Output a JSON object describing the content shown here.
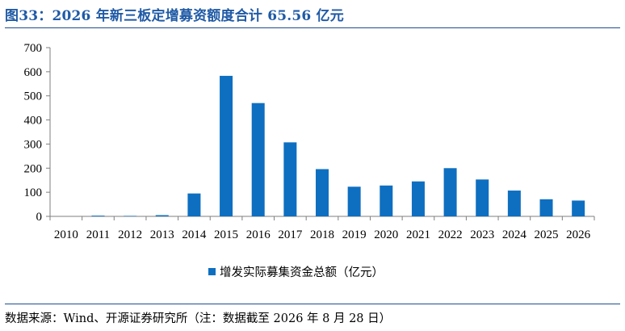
{
  "header": {
    "title": "图33：2026 年新三板定增募资额度合计 65.56 亿元"
  },
  "footer": {
    "source": "数据来源：Wind、开源证券研究所（注：数据截至 2026 年 8 月 28 日）"
  },
  "colors": {
    "bar": "#0e6fc1",
    "title": "#1f5aa6",
    "rule": "#1f4e8c",
    "axis": "#7f7f7f"
  },
  "chart_data": {
    "type": "bar",
    "categories": [
      "2010",
      "2011",
      "2012",
      "2013",
      "2014",
      "2015",
      "2016",
      "2017",
      "2018",
      "2019",
      "2020",
      "2021",
      "2022",
      "2023",
      "2024",
      "2025",
      "2026"
    ],
    "series": [
      {
        "name": "增发实际募集资金总额（亿元）",
        "values": [
          0,
          3,
          2,
          5,
          95,
          583,
          470,
          307,
          196,
          123,
          128,
          145,
          200,
          153,
          107,
          71,
          65.56
        ]
      }
    ],
    "yticks": [
      "0",
      "100",
      "200",
      "300",
      "400",
      "500",
      "600",
      "700"
    ],
    "ylim": [
      0,
      700
    ],
    "legend": "bottom-center",
    "grid": false
  }
}
